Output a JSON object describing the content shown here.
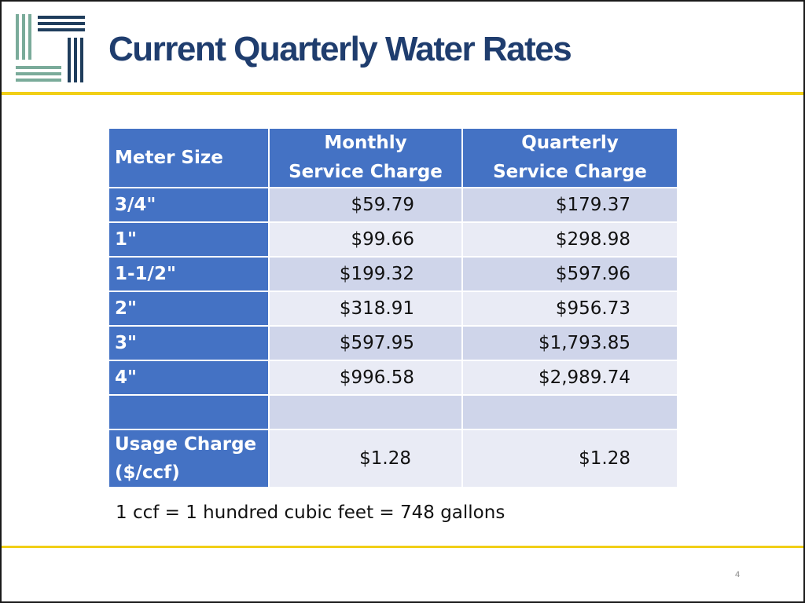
{
  "slide": {
    "title": "Current Quarterly Water Rates",
    "page_number": "4",
    "footnote": "1 ccf = 1 hundred cubic feet = 748 gallons",
    "logo": "agency-logo-lines",
    "colors": {
      "title": "#1f3d6e",
      "accent_rule": "#f1cf16",
      "header_fill": "#4472c4",
      "row_dark": "#cfd5ea",
      "row_light": "#e9ebf5",
      "logo_teal": "#7aab9a",
      "logo_navy": "#1f3d5c"
    }
  },
  "table": {
    "headers": {
      "meter_size": "Meter Size",
      "monthly_line1": "Monthly",
      "monthly_line2": "Service Charge",
      "quarterly_line1": "Quarterly",
      "quarterly_line2": "Service Charge"
    },
    "rows": [
      {
        "size": "3/4\"",
        "monthly": "$59.79",
        "quarterly": "$179.37"
      },
      {
        "size": "1\"",
        "monthly": "$99.66",
        "quarterly": "$298.98"
      },
      {
        "size": "1-1/2\"",
        "monthly": "$199.32",
        "quarterly": "$597.96"
      },
      {
        "size": "2\"",
        "monthly": "$318.91",
        "quarterly": "$956.73"
      },
      {
        "size": "3\"",
        "monthly": "$597.95",
        "quarterly": "$1,793.85"
      },
      {
        "size": "4\"",
        "monthly": "$996.58",
        "quarterly": "$2,989.74"
      },
      {
        "size": "",
        "monthly": "",
        "quarterly": ""
      }
    ],
    "usage": {
      "label_line1": "Usage Charge",
      "label_line2": "($/ccf)",
      "monthly": "$1.28",
      "quarterly": "$1.28"
    }
  }
}
